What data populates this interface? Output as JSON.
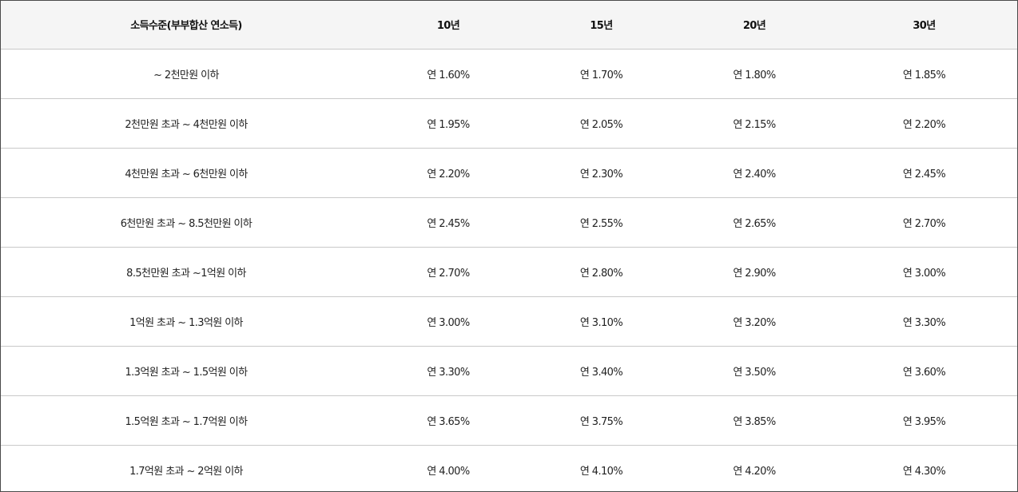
{
  "table": {
    "headers": [
      "소득수준(부부합산 연소득)",
      "10년",
      "15년",
      "20년",
      "30년"
    ],
    "rows": [
      [
        "~ 2천만원 이하",
        "연 1.60%",
        "연 1.70%",
        "연 1.80%",
        "연 1.85%"
      ],
      [
        "2천만원 초과 ~ 4천만원 이하",
        "연 1.95%",
        "연 2.05%",
        "연 2.15%",
        "연 2.20%"
      ],
      [
        "4천만원 초과 ~ 6천만원 이하",
        "연 2.20%",
        "연 2.30%",
        "연 2.40%",
        "연 2.45%"
      ],
      [
        "6천만원 초과 ~ 8.5천만원 이하",
        "연 2.45%",
        "연 2.55%",
        "연 2.65%",
        "연 2.70%"
      ],
      [
        "8.5천만원 초과 ~1억원 이하",
        "연 2.70%",
        "연 2.80%",
        "연 2.90%",
        "연 3.00%"
      ],
      [
        "1억원 초과 ~ 1.3억원 이하",
        "연 3.00%",
        "연 3.10%",
        "연 3.20%",
        "연 3.30%"
      ],
      [
        "1.3억원 초과 ~ 1.5억원 이하",
        "연 3.30%",
        "연 3.40%",
        "연 3.50%",
        "연 3.60%"
      ],
      [
        "1.5억원 초과 ~ 1.7억원 이하",
        "연 3.65%",
        "연 3.75%",
        "연 3.85%",
        "연 3.95%"
      ],
      [
        "1.7억원 초과 ~ 2억원 이하",
        "연 4.00%",
        "연 4.10%",
        "연 4.20%",
        "연 4.30%"
      ]
    ]
  },
  "colors": {
    "header_bg": "#f5f5f5",
    "row_border": "#c9c9c9",
    "outer_border": "#4a4a4a"
  }
}
